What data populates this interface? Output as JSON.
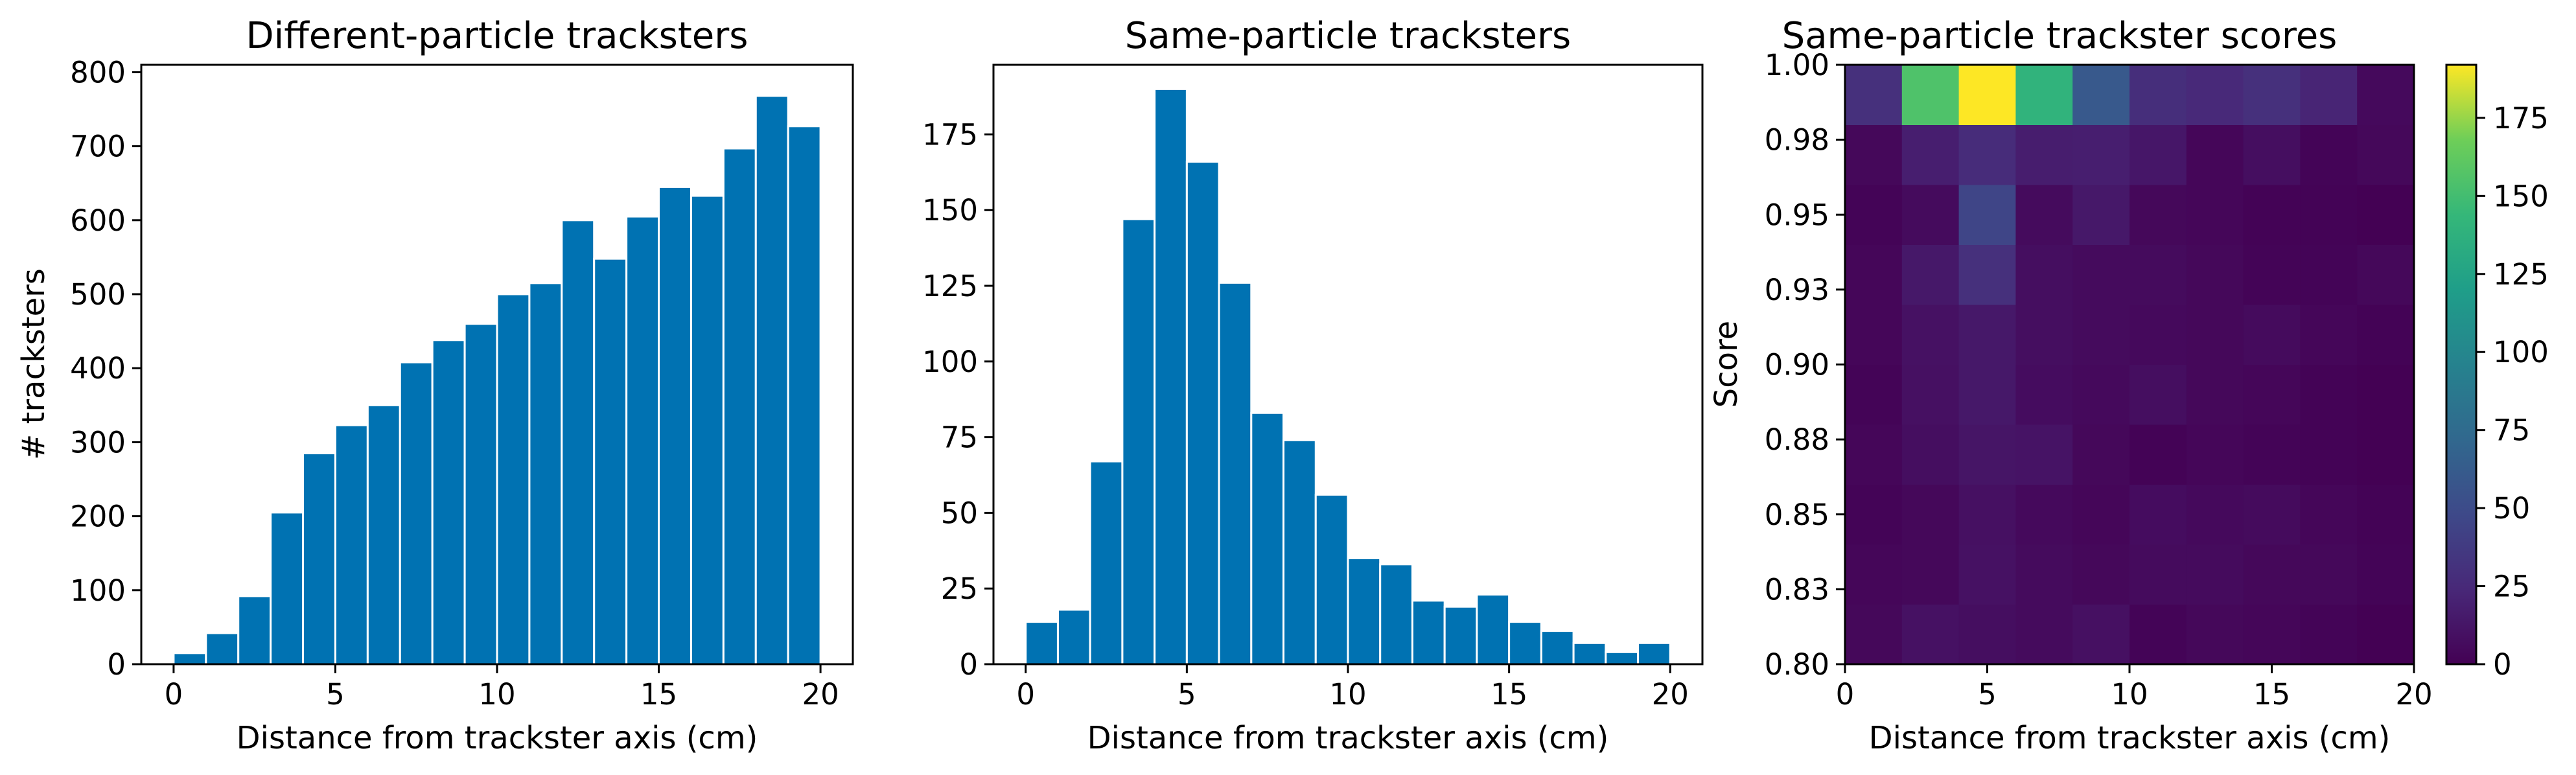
{
  "chart_data": [
    {
      "type": "bar",
      "title": "Different-particle tracksters",
      "xlabel": "Distance from trackster axis (cm)",
      "ylabel": "# tracksters",
      "xlim": [
        -1,
        21
      ],
      "ylim": [
        0,
        810
      ],
      "xticks": [
        0,
        5,
        10,
        15,
        20
      ],
      "yticks": [
        0,
        100,
        200,
        300,
        400,
        500,
        600,
        700,
        800
      ],
      "bin_edges": [
        0,
        1,
        2,
        3,
        4,
        5,
        6,
        7,
        8,
        9,
        10,
        11,
        12,
        13,
        14,
        15,
        16,
        17,
        18,
        19,
        20
      ],
      "values": [
        15,
        42,
        92,
        205,
        285,
        323,
        350,
        408,
        438,
        460,
        500,
        515,
        600,
        548,
        605,
        645,
        633,
        697,
        768,
        727
      ],
      "color": "#0072b2",
      "grid": false
    },
    {
      "type": "bar",
      "title": "Same-particle tracksters",
      "xlabel": "Distance from trackster axis (cm)",
      "ylabel": "",
      "xlim": [
        -1,
        21
      ],
      "ylim": [
        0,
        198
      ],
      "xticks": [
        0,
        5,
        10,
        15,
        20
      ],
      "yticks": [
        0,
        25,
        50,
        75,
        100,
        125,
        150,
        175
      ],
      "bin_edges": [
        0,
        1,
        2,
        3,
        4,
        5,
        6,
        7,
        8,
        9,
        10,
        11,
        12,
        13,
        14,
        15,
        16,
        17,
        18,
        19,
        20
      ],
      "values": [
        14,
        18,
        67,
        147,
        190,
        166,
        126,
        83,
        74,
        56,
        35,
        33,
        21,
        19,
        23,
        14,
        11,
        7,
        4,
        7
      ],
      "color": "#0072b2",
      "grid": false
    },
    {
      "type": "heatmap",
      "title": "Same-particle trackster scores",
      "xlabel": "Distance from trackster axis (cm)",
      "ylabel": "Score",
      "colormap": "viridis",
      "xlim": [
        0,
        20
      ],
      "ylim": [
        0.8,
        1.0
      ],
      "xticks": [
        0,
        5,
        10,
        15,
        20
      ],
      "yticks": [
        "0.80",
        "0.83",
        "0.85",
        "0.88",
        "0.90",
        "0.93",
        "0.95",
        "0.98",
        "1.00"
      ],
      "colorbar_range": [
        0,
        192
      ],
      "colorbar_ticks": [
        0,
        25,
        50,
        75,
        100,
        125,
        150,
        175
      ],
      "x_bin_edges": [
        0,
        2,
        4,
        6,
        8,
        10,
        12,
        14,
        16,
        18,
        20
      ],
      "y_bin_edges": [
        0.8,
        0.82,
        0.84,
        0.86,
        0.88,
        0.9,
        0.92,
        0.94,
        0.96,
        0.98,
        1.0
      ],
      "values": [
        [
          4,
          10,
          8,
          6,
          9,
          2,
          4,
          3,
          2,
          0
        ],
        [
          3,
          4,
          10,
          6,
          4,
          6,
          6,
          4,
          4,
          2
        ],
        [
          2,
          4,
          9,
          5,
          3,
          7,
          5,
          6,
          3,
          1
        ],
        [
          3,
          8,
          12,
          11,
          4,
          1,
          3,
          2,
          1,
          0
        ],
        [
          2,
          9,
          14,
          7,
          5,
          8,
          4,
          3,
          1,
          0
        ],
        [
          3,
          10,
          14,
          8,
          6,
          5,
          4,
          6,
          3,
          1
        ],
        [
          3,
          14,
          30,
          8,
          6,
          6,
          4,
          2,
          2,
          4
        ],
        [
          2,
          6,
          45,
          6,
          14,
          4,
          3,
          1,
          1,
          0
        ],
        [
          4,
          18,
          27,
          17,
          18,
          13,
          3,
          8,
          2,
          4
        ],
        [
          30,
          155,
          192,
          140,
          60,
          28,
          25,
          30,
          22,
          5
        ]
      ]
    }
  ]
}
